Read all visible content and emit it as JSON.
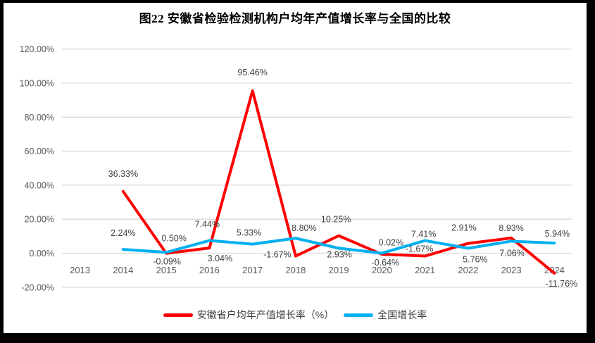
{
  "chart_data": {
    "type": "line",
    "title": "图22  安徽省检验检测机构户均年产值增长率与全国的比较",
    "xlabel": "",
    "ylabel": "",
    "categories": [
      "2013",
      "2014",
      "2015",
      "2016",
      "2017",
      "2018",
      "2019",
      "2020",
      "2021",
      "2022",
      "2023",
      "2024"
    ],
    "series": [
      {
        "name": "安徽省户均年产值增长率（%）",
        "color": "#FF0000",
        "values": [
          null,
          36.33,
          -0.09,
          3.04,
          95.46,
          -1.67,
          10.25,
          -0.64,
          -1.67,
          5.76,
          8.93,
          -11.76
        ],
        "label_offsets": [
          null,
          [
            0,
            -25
          ],
          [
            1,
            12
          ],
          [
            15,
            15
          ],
          [
            0,
            -26
          ],
          [
            -26,
            -2
          ],
          [
            -4,
            -23
          ],
          [
            5,
            12
          ],
          [
            -8,
            -10
          ],
          [
            10,
            23
          ],
          [
            0,
            -14
          ],
          [
            10,
            15
          ]
        ]
      },
      {
        "name": "全国增长率",
        "color": "#00B0F0",
        "values": [
          null,
          2.24,
          0.5,
          7.44,
          5.33,
          8.8,
          2.93,
          0.02,
          7.41,
          2.91,
          7.06,
          5.94
        ],
        "label_offsets": [
          null,
          [
            0,
            -23
          ],
          [
            11,
            -20
          ],
          [
            -3,
            -23
          ],
          [
            -5,
            -16
          ],
          [
            12,
            -14
          ],
          [
            1,
            9
          ],
          [
            13,
            -15
          ],
          [
            -2,
            -9
          ],
          [
            -6,
            -29
          ],
          [
            1,
            17
          ],
          [
            4,
            -13
          ]
        ]
      }
    ],
    "ylim": [
      -20,
      120
    ],
    "ytick_step": 20,
    "ytick_format": "percent-2dp",
    "grid": true,
    "legend_position": "bottom"
  },
  "colors": {
    "grid": "#D9D9D9",
    "axis_text": "#595959",
    "data_label_text": "#404040",
    "frame": "#000000",
    "background": "#FFFFFF"
  }
}
